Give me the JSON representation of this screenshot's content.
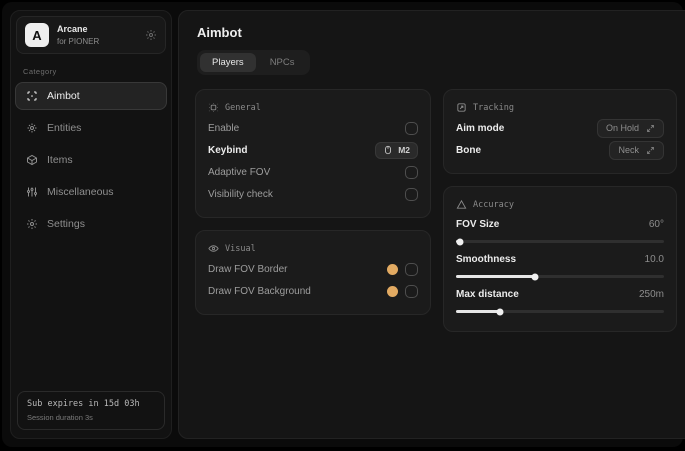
{
  "app": {
    "logo_letter": "A",
    "name": "Arcane",
    "subtitle": "for PIONER"
  },
  "sidebar": {
    "category_label": "Category",
    "items": [
      {
        "label": "Aimbot",
        "icon": "crosshair-icon",
        "selected": true
      },
      {
        "label": "Entities",
        "icon": "entities-icon",
        "selected": false
      },
      {
        "label": "Items",
        "icon": "cube-icon",
        "selected": false
      },
      {
        "label": "Miscellaneous",
        "icon": "sliders-icon",
        "selected": false
      },
      {
        "label": "Settings",
        "icon": "gear-icon",
        "selected": false
      }
    ],
    "footer": {
      "sub_expiry": "Sub expires in 15d 03h",
      "session_duration": "Session duration 3s"
    }
  },
  "main": {
    "title": "Aimbot",
    "tabs": [
      {
        "label": "Players",
        "selected": true
      },
      {
        "label": "NPCs",
        "selected": false
      }
    ],
    "panels": {
      "general": {
        "title": "General",
        "rows": [
          {
            "label": "Enable",
            "control": "checkbox",
            "checked": false
          },
          {
            "label": "Keybind",
            "control": "keybind",
            "value": "M2"
          },
          {
            "label": "Adaptive FOV",
            "control": "checkbox",
            "checked": false
          },
          {
            "label": "Visibility check",
            "control": "checkbox",
            "checked": false
          }
        ]
      },
      "visual": {
        "title": "Visual",
        "rows": [
          {
            "label": "Draw FOV Border",
            "control": "color-checkbox",
            "color": "#e2aa62",
            "checked": false
          },
          {
            "label": "Draw FOV Background",
            "control": "color-checkbox",
            "color": "#e2aa62",
            "checked": false
          }
        ]
      },
      "tracking": {
        "title": "Tracking",
        "rows": [
          {
            "label": "Aim mode",
            "value": "On Hold"
          },
          {
            "label": "Bone",
            "value": "Neck"
          }
        ]
      },
      "accuracy": {
        "title": "Accuracy",
        "rows": [
          {
            "label": "FOV Size",
            "value": "60°",
            "percent": 2
          },
          {
            "label": "Smoothness",
            "value": "10.0",
            "percent": 38
          },
          {
            "label": "Max distance",
            "value": "250m",
            "percent": 21
          }
        ]
      }
    }
  },
  "colors": {
    "accent_swatch": "#e2aa62",
    "background": "#0b0b0b",
    "panel": "#1b1b1b"
  }
}
